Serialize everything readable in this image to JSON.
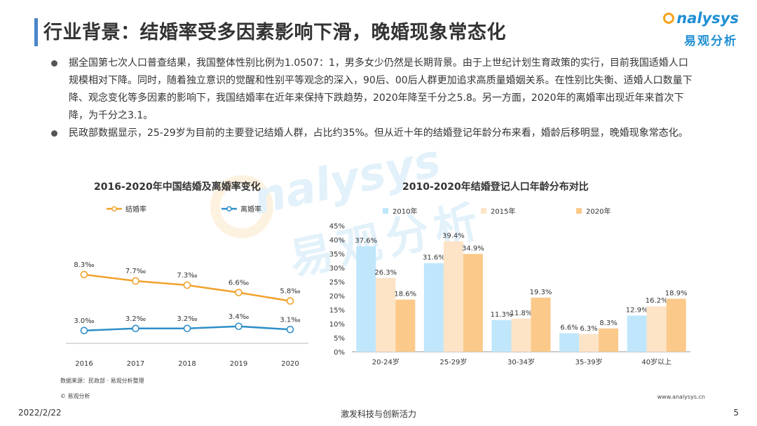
{
  "page": {
    "title": "行业背景：结婚率受多因素影响下滑，晚婚现象常态化",
    "logo_en": "nalysys",
    "logo_cn": "易观分析",
    "bullets": [
      "据全国第七次人口普查结果，我国整体性别比例为1.0507：1，男多女少仍然是长期背景。由于上世纪计划生育政策的实行，目前我国适婚人口规模相对下降。同时，随着独立意识的觉醒和性别平等观念的深入，90后、00后人群更加追求高质量婚姻关系。在性别比失衡、适婚人口数量下降、观念变化等多因素的影响下，我国结婚率在近年来保持下跌趋势，2020年降至千分之5.8。另一方面，2020年的离婚率出现近年来首次下降，为千分之3.1。",
      "民政部数据显示，25-29岁为目前的主要登记结婚人群，占比约35%。但从近十年的结婚登记年龄分布来看，婚龄后移明显，晚婚现象常态化。"
    ],
    "watermark_en": "nalysys",
    "watermark_cn": "易观分析",
    "source": "数据来源：民政部 · 易观分析整理",
    "copyright": "© 易观分析",
    "site": "www.analysys.cn",
    "date": "2022/2/22",
    "slogan": "激发科技与创新活力",
    "page_number": "5"
  },
  "chart_data": [
    {
      "type": "line",
      "title": "2016-2020年中国结婚及离婚率变化",
      "x": [
        "2016",
        "2017",
        "2018",
        "2019",
        "2020"
      ],
      "series": [
        {
          "name": "结婚率",
          "values": [
            8.3,
            7.7,
            7.3,
            6.6,
            5.8
          ],
          "labels": [
            "8.3‰",
            "7.7‰",
            "7.3‰",
            "6.6‰",
            "5.8‰"
          ],
          "color": "#f0a22c"
        },
        {
          "name": "离婚率",
          "values": [
            3.0,
            3.2,
            3.2,
            3.4,
            3.1
          ],
          "labels": [
            "3.0‰",
            "3.2‰",
            "3.2‰",
            "3.4‰",
            "3.1‰"
          ],
          "color": "#2e8fc8"
        }
      ],
      "ylim": [
        0,
        10
      ],
      "grid": false,
      "legend": "top-left"
    },
    {
      "type": "bar",
      "title": "2010-2020年结婚登记人口年龄分布对比",
      "categories": [
        "20-24岁",
        "25-29岁",
        "30-34岁",
        "35-39岁",
        "40岁以上"
      ],
      "series": [
        {
          "name": "2010年",
          "values": [
            37.6,
            31.6,
            11.3,
            6.6,
            12.9
          ],
          "color": "#bfe6fb"
        },
        {
          "name": "2015年",
          "values": [
            26.3,
            39.4,
            11.8,
            6.3,
            16.2
          ],
          "color": "#fde4c6"
        },
        {
          "name": "2020年",
          "values": [
            18.6,
            34.9,
            19.3,
            8.3,
            18.9
          ],
          "color": "#fbc98a"
        }
      ],
      "yticks": [
        "0%",
        "5%",
        "10%",
        "15%",
        "20%",
        "25%",
        "30%",
        "35%",
        "40%",
        "45%"
      ],
      "ylim": [
        0,
        45
      ],
      "grid": false,
      "legend": "top"
    }
  ]
}
